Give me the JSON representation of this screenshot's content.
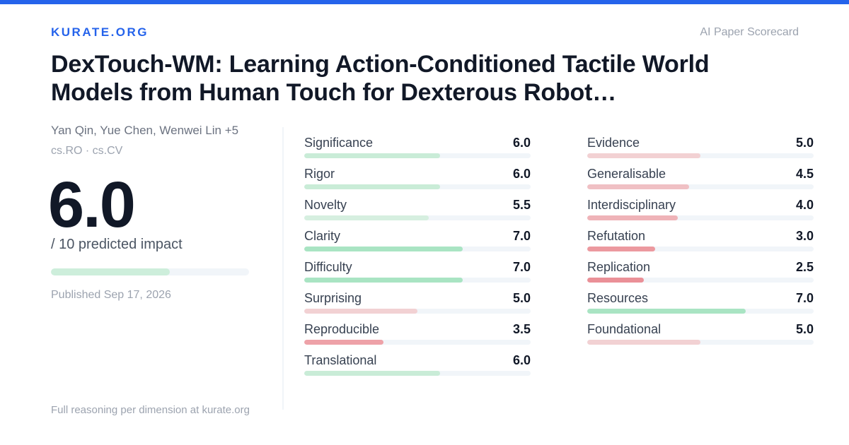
{
  "brand": "KURATE.ORG",
  "tagline": "AI Paper Scorecard",
  "paper": {
    "title": "DexTouch-WM: Learning Action-Conditioned Tactile World Models from Human Touch for Dexterous Robot…",
    "authors": "Yan Qin, Yue Chen, Wenwei Lin +5",
    "categories": "cs.RO · cs.CV",
    "published": "Published Sep 17, 2026"
  },
  "overall": {
    "score": "6.0",
    "caption": "/ 10 predicted impact",
    "fraction": 0.6,
    "color": "#cdeedb"
  },
  "footer": "Full reasoning per dimension at kurate.org",
  "metrics_left": [
    {
      "label": "Significance",
      "value": "6.0",
      "score": 6.0,
      "color": "#c9ecd7"
    },
    {
      "label": "Rigor",
      "value": "6.0",
      "score": 6.0,
      "color": "#c9ecd7"
    },
    {
      "label": "Novelty",
      "value": "5.5",
      "score": 5.5,
      "color": "#d6efe0"
    },
    {
      "label": "Clarity",
      "value": "7.0",
      "score": 7.0,
      "color": "#a9e4c3"
    },
    {
      "label": "Difficulty",
      "value": "7.0",
      "score": 7.0,
      "color": "#a9e4c3"
    },
    {
      "label": "Surprising",
      "value": "5.0",
      "score": 5.0,
      "color": "#f2d1d3"
    },
    {
      "label": "Reproducible",
      "value": "3.5",
      "score": 3.5,
      "color": "#eea2a8"
    },
    {
      "label": "Translational",
      "value": "6.0",
      "score": 6.0,
      "color": "#c9ecd7"
    }
  ],
  "metrics_right": [
    {
      "label": "Evidence",
      "value": "5.0",
      "score": 5.0,
      "color": "#f2d1d3"
    },
    {
      "label": "Generalisable",
      "value": "4.5",
      "score": 4.5,
      "color": "#f0c0c4"
    },
    {
      "label": "Interdisciplinary",
      "value": "4.0",
      "score": 4.0,
      "color": "#efb3b8"
    },
    {
      "label": "Refutation",
      "value": "3.0",
      "score": 3.0,
      "color": "#ec999f"
    },
    {
      "label": "Replication",
      "value": "2.5",
      "score": 2.5,
      "color": "#ea9097"
    },
    {
      "label": "Resources",
      "value": "7.0",
      "score": 7.0,
      "color": "#a9e4c3"
    },
    {
      "label": "Foundational",
      "value": "5.0",
      "score": 5.0,
      "color": "#f2d1d3"
    }
  ]
}
